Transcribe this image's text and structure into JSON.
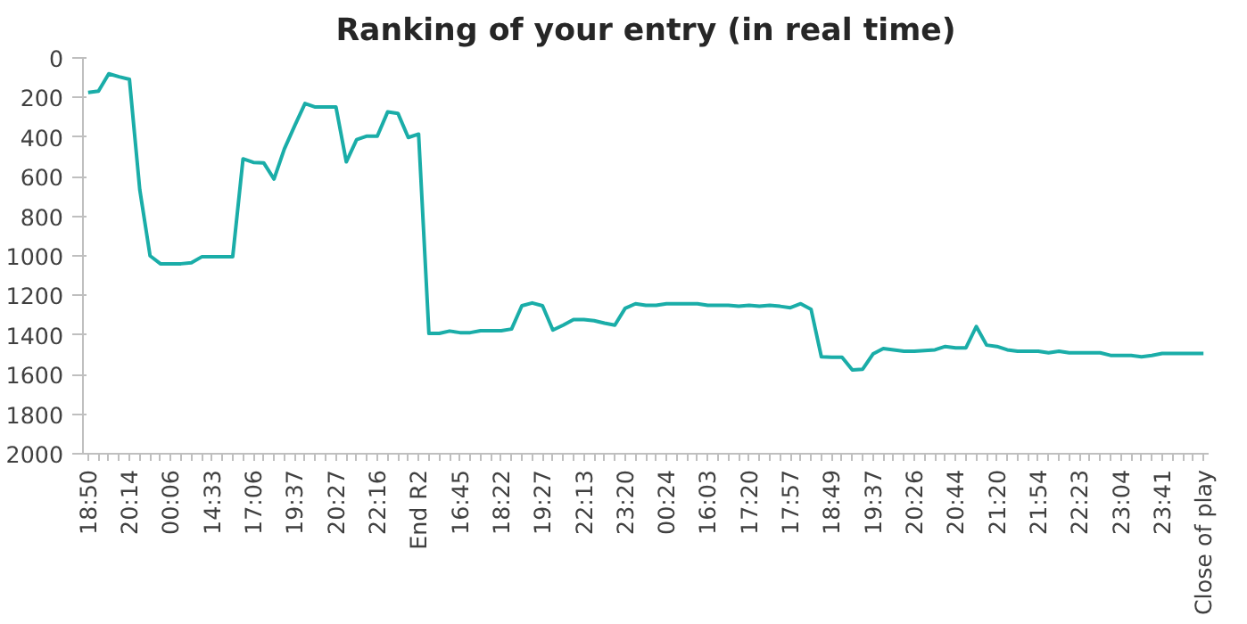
{
  "chart_data": {
    "type": "line",
    "title": "Ranking of your entry (in real time)",
    "categories": [
      "18:50",
      null,
      null,
      null,
      "20:14",
      null,
      null,
      null,
      "00:06",
      null,
      null,
      null,
      "14:33",
      null,
      null,
      null,
      "17:06",
      null,
      null,
      null,
      "19:37",
      null,
      null,
      null,
      "20:27",
      null,
      null,
      null,
      "22:16",
      null,
      null,
      null,
      "End R2",
      null,
      null,
      null,
      "16:45",
      null,
      null,
      null,
      "18:22",
      null,
      null,
      null,
      "19:27",
      null,
      null,
      null,
      "22:13",
      null,
      null,
      null,
      "23:20",
      null,
      null,
      null,
      "00:24",
      null,
      null,
      null,
      "16:03",
      null,
      null,
      null,
      "17:20",
      null,
      null,
      null,
      "17:57",
      null,
      null,
      null,
      "18:49",
      null,
      null,
      null,
      "19:37",
      null,
      null,
      null,
      "20:26",
      null,
      null,
      null,
      "20:44",
      null,
      null,
      null,
      "21:20",
      null,
      null,
      null,
      "21:54",
      null,
      null,
      null,
      "22:23",
      null,
      null,
      null,
      "23:04",
      null,
      null,
      null,
      "23:41",
      null,
      null,
      null,
      "Close of play"
    ],
    "series": [
      {
        "color": "#1aada8",
        "values": [
          175,
          168,
          80,
          95,
          108,
          665,
          1000,
          1040,
          1040,
          1040,
          1035,
          1005,
          1005,
          1005,
          1005,
          510,
          528,
          530,
          612,
          460,
          343,
          230,
          248,
          248,
          248,
          525,
          413,
          395,
          395,
          273,
          280,
          402,
          385,
          1392,
          1392,
          1380,
          1388,
          1388,
          1378,
          1378,
          1378,
          1370,
          1252,
          1238,
          1252,
          1375,
          1350,
          1322,
          1322,
          1328,
          1340,
          1350,
          1265,
          1242,
          1250,
          1250,
          1242,
          1242,
          1242,
          1242,
          1250,
          1250,
          1250,
          1255,
          1250,
          1255,
          1250,
          1255,
          1262,
          1242,
          1270,
          1510,
          1512,
          1512,
          1577,
          1573,
          1496,
          1468,
          1475,
          1482,
          1482,
          1479,
          1475,
          1458,
          1465,
          1465,
          1357,
          1451,
          1458,
          1475,
          1482,
          1482,
          1482,
          1490,
          1482,
          1490,
          1490,
          1490,
          1490,
          1503,
          1503,
          1503,
          1510,
          1503,
          1493,
          1493,
          1493,
          1493,
          1493
        ]
      }
    ],
    "ylim": [
      2000,
      0
    ],
    "yticks": [
      0,
      200,
      400,
      600,
      800,
      1000,
      1200,
      1400,
      1600,
      1800,
      2000
    ],
    "grid": false,
    "marker": "none",
    "line_style": "solid"
  }
}
